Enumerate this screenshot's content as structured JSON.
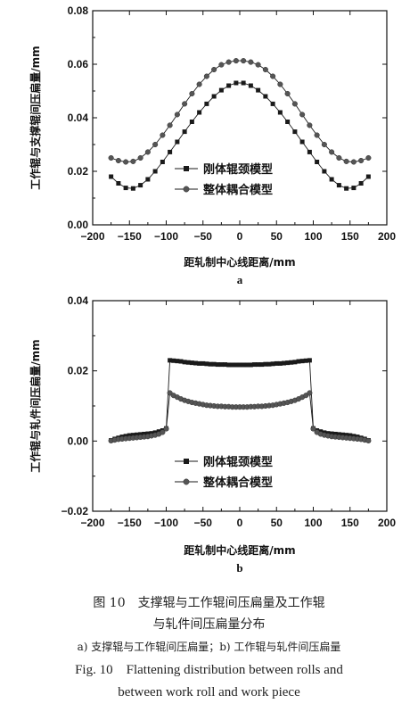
{
  "chart_data": [
    {
      "type": "line",
      "panel": "a",
      "xlabel": "距轧制中心线距离/mm",
      "ylabel": "工作辊与支撑辊间压扁量/mm",
      "xlim": [
        -200,
        200
      ],
      "ylim": [
        0.0,
        0.08
      ],
      "xticks": [
        "−200",
        "−150",
        "−100",
        "−50",
        "0",
        "50",
        "100",
        "150",
        "200"
      ],
      "yticks": [
        "0.00",
        "0.02",
        "0.04",
        "0.06",
        "0.08"
      ],
      "legend_position": "center-left",
      "series": [
        {
          "name": "刚体辊颈模型",
          "marker": "square",
          "x": [
            -175,
            -165,
            -155,
            -145,
            -135,
            -125,
            -115,
            -105,
            -95,
            -85,
            -75,
            -65,
            -55,
            -45,
            -35,
            -25,
            -15,
            -5,
            5,
            15,
            25,
            35,
            45,
            55,
            65,
            75,
            85,
            95,
            105,
            115,
            125,
            135,
            145,
            155,
            165,
            175
          ],
          "y": [
            0.018,
            0.0155,
            0.0138,
            0.0136,
            0.0148,
            0.017,
            0.02,
            0.0235,
            0.0272,
            0.031,
            0.0348,
            0.0385,
            0.042,
            0.0452,
            0.048,
            0.0503,
            0.052,
            0.053,
            0.053,
            0.052,
            0.0503,
            0.048,
            0.0452,
            0.042,
            0.0385,
            0.0348,
            0.031,
            0.0272,
            0.0235,
            0.02,
            0.017,
            0.0148,
            0.0136,
            0.0138,
            0.0155,
            0.018
          ]
        },
        {
          "name": "整体耦合模型",
          "marker": "circle",
          "x": [
            -175,
            -165,
            -155,
            -145,
            -135,
            -125,
            -115,
            -105,
            -95,
            -85,
            -75,
            -65,
            -55,
            -45,
            -35,
            -25,
            -15,
            -5,
            5,
            15,
            25,
            35,
            45,
            55,
            65,
            75,
            85,
            95,
            105,
            115,
            125,
            135,
            145,
            155,
            165,
            175
          ],
          "y": [
            0.025,
            0.024,
            0.0235,
            0.0237,
            0.025,
            0.0272,
            0.03,
            0.0335,
            0.0372,
            0.0412,
            0.0452,
            0.049,
            0.0525,
            0.0555,
            0.058,
            0.0598,
            0.0608,
            0.0613,
            0.0613,
            0.0608,
            0.0598,
            0.058,
            0.0555,
            0.0525,
            0.049,
            0.0452,
            0.0412,
            0.0372,
            0.0335,
            0.03,
            0.0272,
            0.025,
            0.0237,
            0.0235,
            0.024,
            0.025
          ]
        }
      ]
    },
    {
      "type": "line",
      "panel": "b",
      "xlabel": "距轧制中心线距离/mm",
      "ylabel": "工作辊与轧件间压扁量/mm",
      "xlim": [
        -200,
        200
      ],
      "ylim": [
        -0.02,
        0.04
      ],
      "xticks": [
        "−200",
        "−150",
        "−100",
        "−50",
        "0",
        "50",
        "100",
        "150",
        "200"
      ],
      "yticks": [
        "−0.02",
        "0.00",
        "0.02",
        "0.04"
      ],
      "legend_position": "bottom-center",
      "series": [
        {
          "name": "刚体辊颈模型",
          "marker": "square",
          "x": [
            -175,
            -170,
            -165,
            -160,
            -155,
            -150,
            -145,
            -140,
            -135,
            -130,
            -125,
            -120,
            -115,
            -110,
            -105,
            -100,
            -95,
            -90,
            -85,
            -80,
            -75,
            -70,
            -65,
            -60,
            -55,
            -50,
            -45,
            -40,
            -35,
            -30,
            -25,
            -20,
            -15,
            -10,
            -5,
            0,
            5,
            10,
            15,
            20,
            25,
            30,
            35,
            40,
            45,
            50,
            55,
            60,
            65,
            70,
            75,
            80,
            85,
            90,
            95,
            100,
            105,
            110,
            115,
            120,
            125,
            130,
            135,
            140,
            145,
            150,
            155,
            160,
            165,
            170,
            175
          ],
          "y": [
            0.0002,
            0.0006,
            0.0009,
            0.0012,
            0.0014,
            0.0016,
            0.0017,
            0.0018,
            0.0019,
            0.002,
            0.0021,
            0.0022,
            0.0024,
            0.0027,
            0.003,
            0.0036,
            0.023,
            0.0229,
            0.0228,
            0.0227,
            0.0225,
            0.0224,
            0.0223,
            0.0222,
            0.0221,
            0.0221,
            0.022,
            0.0219,
            0.0219,
            0.0218,
            0.0218,
            0.0218,
            0.0217,
            0.0217,
            0.0217,
            0.0217,
            0.0217,
            0.0217,
            0.0217,
            0.0218,
            0.0218,
            0.0218,
            0.0219,
            0.0219,
            0.022,
            0.0221,
            0.0221,
            0.0222,
            0.0223,
            0.0224,
            0.0225,
            0.0227,
            0.0228,
            0.0229,
            0.023,
            0.0036,
            0.003,
            0.0027,
            0.0024,
            0.0022,
            0.0021,
            0.002,
            0.0019,
            0.0018,
            0.0017,
            0.0016,
            0.0014,
            0.0012,
            0.0009,
            0.0006,
            0.0002
          ]
        },
        {
          "name": "整体耦合模型",
          "marker": "circle",
          "x": [
            -175,
            -170,
            -165,
            -160,
            -155,
            -150,
            -145,
            -140,
            -135,
            -130,
            -125,
            -120,
            -115,
            -110,
            -105,
            -100,
            -95,
            -90,
            -85,
            -80,
            -75,
            -70,
            -65,
            -60,
            -55,
            -50,
            -45,
            -40,
            -35,
            -30,
            -25,
            -20,
            -15,
            -10,
            -5,
            0,
            5,
            10,
            15,
            20,
            25,
            30,
            35,
            40,
            45,
            50,
            55,
            60,
            65,
            70,
            75,
            80,
            85,
            90,
            95,
            100,
            105,
            110,
            115,
            120,
            125,
            130,
            135,
            140,
            145,
            150,
            155,
            160,
            165,
            170,
            175
          ],
          "y": [
            0.0001,
            0.0003,
            0.0005,
            0.0006,
            0.0007,
            0.0008,
            0.0009,
            0.001,
            0.0011,
            0.0012,
            0.0013,
            0.0015,
            0.0017,
            0.002,
            0.0025,
            0.0035,
            0.0137,
            0.013,
            0.0125,
            0.012,
            0.0116,
            0.0113,
            0.011,
            0.0108,
            0.0106,
            0.0104,
            0.0102,
            0.0101,
            0.01,
            0.0099,
            0.0099,
            0.0098,
            0.0098,
            0.0097,
            0.0097,
            0.0097,
            0.0097,
            0.0097,
            0.0098,
            0.0098,
            0.0099,
            0.0099,
            0.01,
            0.0101,
            0.0102,
            0.0104,
            0.0106,
            0.0108,
            0.011,
            0.0113,
            0.0116,
            0.012,
            0.0125,
            0.013,
            0.0137,
            0.0035,
            0.0025,
            0.002,
            0.0017,
            0.0015,
            0.0013,
            0.0012,
            0.0011,
            0.001,
            0.0009,
            0.0008,
            0.0007,
            0.0006,
            0.0005,
            0.0003,
            0.0001
          ]
        }
      ]
    }
  ],
  "caption": {
    "line1": "图 10　支撑辊与工作辊间压扁量及工作辊",
    "line2": "与轧件间压扁量分布",
    "line3": "a) 支撑辊与工作辊间压扁量；b) 工作辊与轧件间压扁量",
    "line4": "Fig. 10　Flattening distribution between rolls and",
    "line5": "between work roll and work piece"
  },
  "colors": {
    "axis": "#111111",
    "series": "#1a1a1a",
    "circle_fill": "#555555"
  }
}
